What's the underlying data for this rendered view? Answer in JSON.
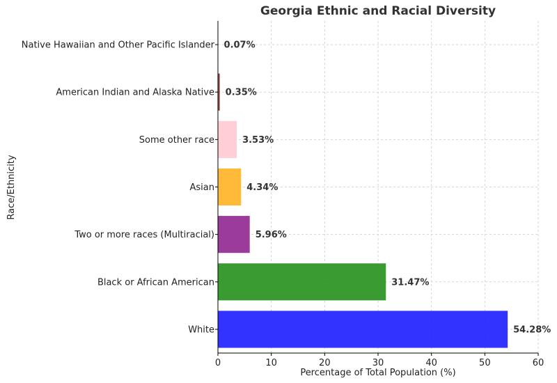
{
  "chart_data": {
    "type": "bar",
    "orientation": "horizontal",
    "title": "Georgia Ethnic and Racial Diversity",
    "xlabel": "Percentage of Total Population (%)",
    "ylabel": "Race/Ethnicity",
    "xlim": [
      0,
      60
    ],
    "xticks": [
      0,
      10,
      20,
      30,
      40,
      50,
      60
    ],
    "grid": true,
    "categories": [
      "White",
      "Black or African American",
      "Two or more races (Multiracial)",
      "Asian",
      "Some other race",
      "American Indian and Alaska Native",
      "Native Hawaiian and Other Pacific Islander"
    ],
    "values": [
      54.28,
      31.47,
      5.96,
      4.34,
      3.53,
      0.35,
      0.07
    ],
    "value_labels": [
      "54.28%",
      "31.47%",
      "5.96%",
      "4.34%",
      "3.53%",
      "0.35%",
      "0.07%"
    ],
    "colors": [
      "#2222ff",
      "#2a9222",
      "#922a92",
      "#ffb428",
      "#ffcad3",
      "#8b3a3a",
      "#3cc4d8"
    ]
  }
}
